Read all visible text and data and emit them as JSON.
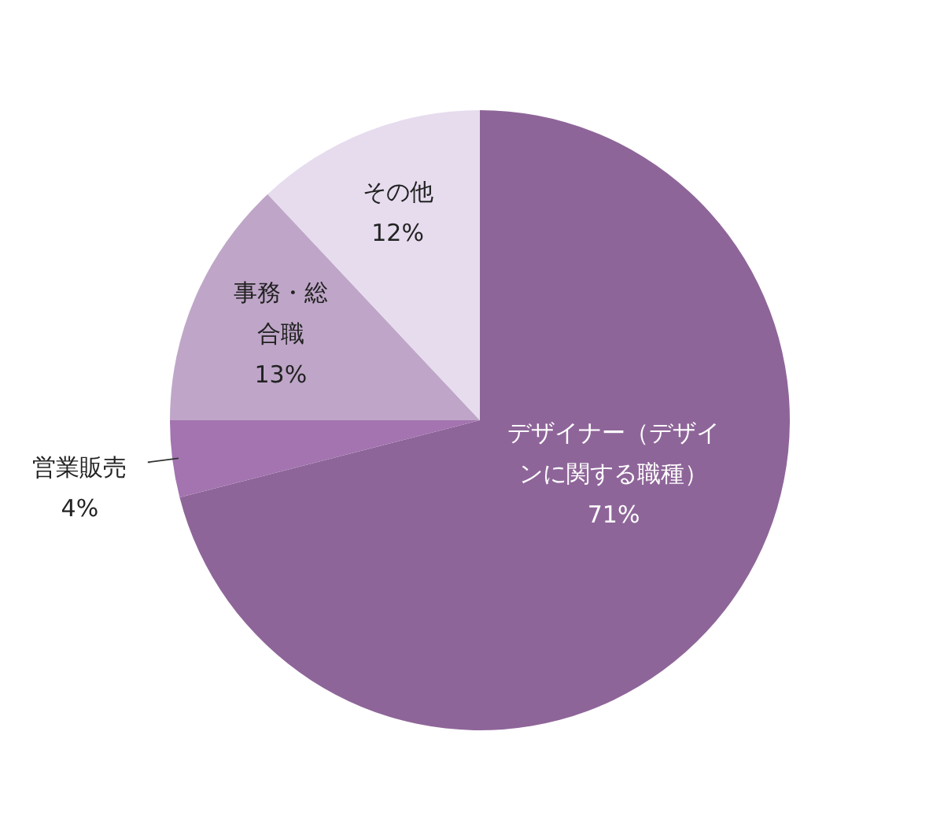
{
  "chart_data": {
    "type": "pie",
    "categories": [
      "デザイナー（デザインに関する職種）",
      "営業販売",
      "事務・総合職",
      "その他"
    ],
    "values": [
      71,
      4,
      13,
      12
    ],
    "colors": [
      "#8e6599",
      "#a374b0",
      "#bfa6c8",
      "#e6dcee"
    ],
    "value_labels": [
      "71%",
      "4%",
      "13%",
      "12%"
    ],
    "legend": false
  }
}
